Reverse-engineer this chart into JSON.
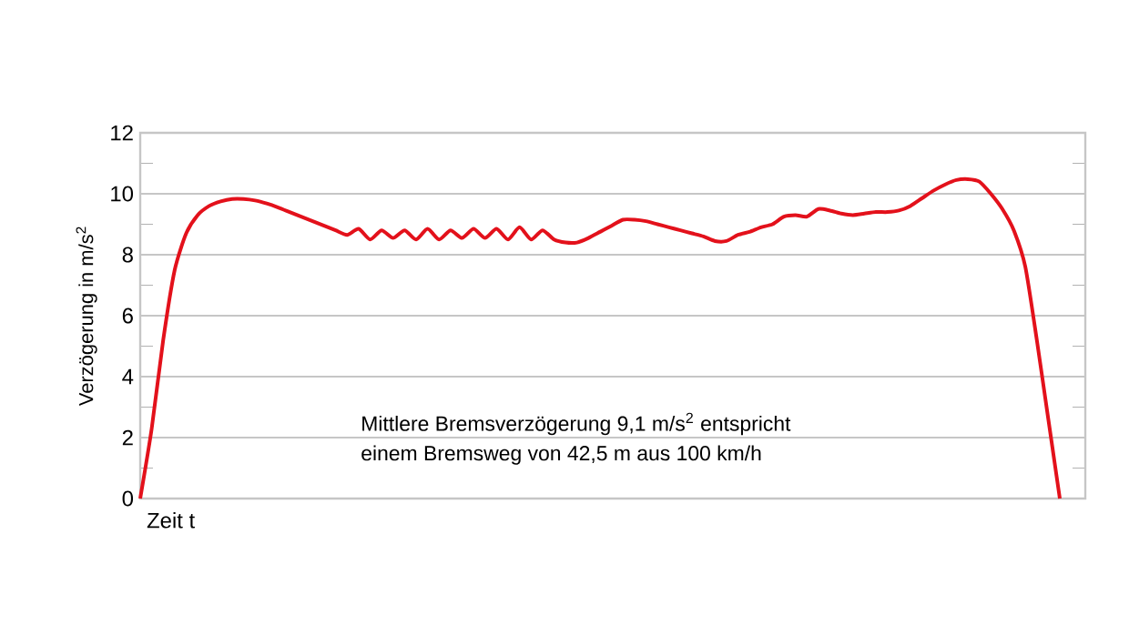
{
  "chart_data": {
    "type": "line",
    "ylabel": "Verzögerung in m/s$^{2}$",
    "xlabel": "Zeit t",
    "categories": [
      null,
      null,
      null,
      null,
      null,
      null,
      null,
      null,
      null,
      null,
      null,
      null,
      null,
      null,
      null,
      null,
      null,
      null,
      null,
      null,
      null,
      null,
      null,
      null,
      null,
      null,
      null,
      null,
      null,
      null,
      null,
      null,
      null,
      null,
      null,
      null,
      null,
      null,
      null,
      null,
      null,
      null,
      null,
      null,
      null,
      null,
      null,
      null,
      null,
      null,
      null,
      null,
      null,
      null,
      null,
      null,
      null,
      null,
      null,
      null,
      null,
      null,
      null,
      null,
      null,
      null,
      null,
      null,
      null,
      null,
      null,
      null,
      null,
      null,
      null,
      null,
      null,
      null,
      null,
      null,
      null
    ],
    "series": [
      {
        "color": "#e3111b",
        "values": [
          0,
          2.3,
          5.2,
          7.5,
          8.7,
          9.3,
          9.6,
          9.75,
          9.83,
          9.83,
          9.78,
          9.68,
          9.55,
          9.4,
          9.25,
          9.1,
          8.95,
          8.8,
          8.65,
          8.85,
          8.5,
          8.8,
          8.55,
          8.8,
          8.5,
          8.85,
          8.5,
          8.8,
          8.55,
          8.85,
          8.55,
          8.85,
          8.5,
          8.9,
          8.5,
          8.8,
          8.5,
          8.4,
          8.4,
          8.55,
          8.75,
          8.95,
          9.15,
          9.15,
          9.1,
          9.0,
          8.9,
          8.8,
          8.7,
          8.6,
          8.45,
          8.45,
          8.65,
          8.75,
          8.9,
          9.0,
          9.25,
          9.3,
          9.25,
          9.5,
          9.45,
          9.35,
          9.3,
          9.35,
          9.4,
          9.4,
          9.45,
          9.6,
          9.85,
          10.1,
          10.3,
          10.45,
          10.48,
          10.4,
          10.0,
          9.5,
          8.8,
          7.6,
          5.2,
          2.6,
          0
        ]
      }
    ],
    "ylim": [
      0,
      12
    ],
    "yticks": [
      0,
      {
        "value": 1,
        "label": null
      },
      2,
      {
        "value": 3,
        "label": null
      },
      4,
      {
        "value": 5,
        "label": null
      },
      6,
      {
        "value": 7,
        "label": null
      },
      8,
      {
        "value": 9,
        "label": null
      },
      10,
      {
        "value": 11,
        "label": null
      },
      12
    ],
    "grid": "y",
    "tick_labels": "y",
    "marker": "none",
    "line_style": "solid",
    "annotations": [
      "Mittlere Bremsverzögerung 9,1 m/s$^{2}$ entspricht",
      "einem Bremsweg von 42,5 m aus 100 km/h"
    ]
  }
}
